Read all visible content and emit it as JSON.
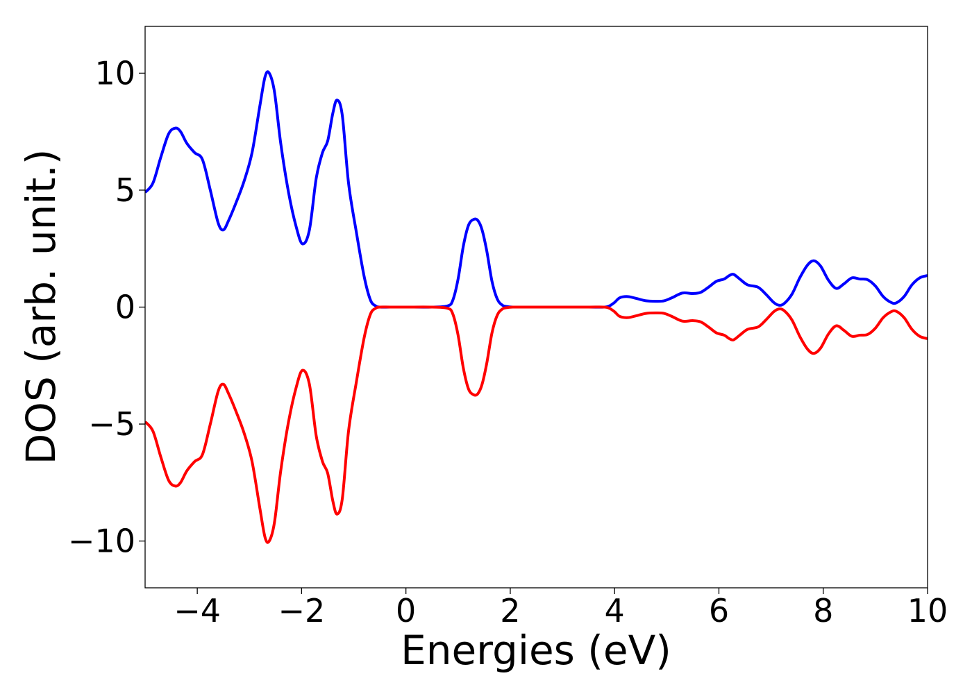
{
  "chart_data": {
    "type": "line",
    "xlabel": "Energies (eV)",
    "ylabel": "DOS (arb. unit.)",
    "xlim": [
      -5,
      10
    ],
    "ylim": [
      -12,
      12
    ],
    "grid": false,
    "x_ticks": [
      -4,
      -2,
      0,
      2,
      4,
      6,
      8,
      10
    ],
    "x_tick_labels": [
      "−4",
      "−2",
      "0",
      "2",
      "4",
      "6",
      "8",
      "10"
    ],
    "y_ticks": [
      -10,
      -5,
      0,
      5,
      10
    ],
    "y_tick_labels": [
      "−10",
      "−5",
      "0",
      "5",
      "10"
    ],
    "series": [
      {
        "color": "#0000ff",
        "x": [
          -5.0,
          -4.85,
          -4.7,
          -4.55,
          -4.42,
          -4.32,
          -4.2,
          -4.05,
          -3.9,
          -3.75,
          -3.6,
          -3.5,
          -3.4,
          -3.25,
          -3.1,
          -2.95,
          -2.8,
          -2.7,
          -2.62,
          -2.52,
          -2.4,
          -2.25,
          -2.1,
          -1.98,
          -1.85,
          -1.72,
          -1.6,
          -1.5,
          -1.4,
          -1.32,
          -1.22,
          -1.1,
          -0.95,
          -0.8,
          -0.68,
          -0.58,
          -0.5,
          -0.3,
          0.0,
          0.5,
          0.8,
          0.9,
          1.0,
          1.1,
          1.2,
          1.3,
          1.38,
          1.46,
          1.55,
          1.65,
          1.75,
          1.85,
          1.95,
          2.05,
          2.2,
          2.6,
          3.0,
          3.5,
          3.8,
          3.9,
          4.0,
          4.1,
          4.25,
          4.4,
          4.6,
          4.8,
          4.95,
          5.1,
          5.3,
          5.5,
          5.65,
          5.8,
          5.95,
          6.1,
          6.2,
          6.28,
          6.4,
          6.55,
          6.75,
          6.9,
          7.05,
          7.15,
          7.25,
          7.4,
          7.55,
          7.7,
          7.82,
          7.95,
          8.1,
          8.25,
          8.4,
          8.55,
          8.7,
          8.85,
          9.0,
          9.15,
          9.3,
          9.4,
          9.55,
          9.7,
          9.85,
          10.0
        ],
        "y": [
          4.9,
          5.3,
          6.4,
          7.4,
          7.65,
          7.5,
          7.0,
          6.6,
          6.3,
          5.0,
          3.6,
          3.3,
          3.7,
          4.5,
          5.4,
          6.6,
          8.6,
          9.85,
          10.0,
          9.2,
          7.0,
          4.9,
          3.4,
          2.7,
          3.3,
          5.5,
          6.6,
          7.1,
          8.3,
          8.85,
          8.2,
          5.3,
          3.2,
          1.3,
          0.3,
          0.05,
          0.0,
          0.0,
          0.0,
          0.0,
          0.05,
          0.3,
          1.2,
          2.6,
          3.5,
          3.75,
          3.7,
          3.3,
          2.4,
          1.1,
          0.35,
          0.08,
          0.02,
          0.0,
          0.0,
          0.0,
          0.0,
          0.0,
          0.0,
          0.05,
          0.2,
          0.4,
          0.45,
          0.38,
          0.27,
          0.25,
          0.27,
          0.4,
          0.6,
          0.58,
          0.63,
          0.85,
          1.1,
          1.2,
          1.35,
          1.4,
          1.2,
          0.95,
          0.85,
          0.55,
          0.2,
          0.08,
          0.15,
          0.55,
          1.25,
          1.8,
          1.98,
          1.75,
          1.15,
          0.8,
          1.0,
          1.25,
          1.2,
          1.17,
          0.9,
          0.45,
          0.2,
          0.18,
          0.45,
          0.95,
          1.25,
          1.35
        ]
      },
      {
        "color": "#ff0000",
        "x": [
          -5.0,
          -4.85,
          -4.7,
          -4.55,
          -4.42,
          -4.32,
          -4.2,
          -4.05,
          -3.9,
          -3.75,
          -3.6,
          -3.5,
          -3.4,
          -3.25,
          -3.1,
          -2.95,
          -2.8,
          -2.7,
          -2.62,
          -2.52,
          -2.4,
          -2.25,
          -2.1,
          -1.98,
          -1.85,
          -1.72,
          -1.6,
          -1.5,
          -1.4,
          -1.32,
          -1.22,
          -1.1,
          -0.95,
          -0.8,
          -0.68,
          -0.58,
          -0.5,
          -0.3,
          0.0,
          0.5,
          0.8,
          0.9,
          1.0,
          1.1,
          1.2,
          1.3,
          1.38,
          1.46,
          1.55,
          1.65,
          1.75,
          1.85,
          1.95,
          2.05,
          2.2,
          2.6,
          3.0,
          3.5,
          3.8,
          3.9,
          4.0,
          4.1,
          4.25,
          4.4,
          4.6,
          4.8,
          4.95,
          5.1,
          5.3,
          5.5,
          5.65,
          5.8,
          5.95,
          6.1,
          6.2,
          6.28,
          6.4,
          6.55,
          6.75,
          6.9,
          7.05,
          7.15,
          7.25,
          7.4,
          7.55,
          7.7,
          7.82,
          7.95,
          8.1,
          8.25,
          8.4,
          8.55,
          8.7,
          8.85,
          9.0,
          9.15,
          9.3,
          9.4,
          9.55,
          9.7,
          9.85,
          10.0
        ],
        "y": [
          -4.9,
          -5.3,
          -6.4,
          -7.4,
          -7.65,
          -7.5,
          -7.0,
          -6.6,
          -6.3,
          -5.0,
          -3.6,
          -3.3,
          -3.7,
          -4.5,
          -5.4,
          -6.6,
          -8.6,
          -9.85,
          -10.0,
          -9.2,
          -7.0,
          -4.9,
          -3.4,
          -2.7,
          -3.3,
          -5.5,
          -6.6,
          -7.1,
          -8.3,
          -8.85,
          -8.2,
          -5.3,
          -3.2,
          -1.3,
          -0.3,
          -0.05,
          0.0,
          0.0,
          0.0,
          0.0,
          -0.05,
          -0.3,
          -1.2,
          -2.6,
          -3.5,
          -3.75,
          -3.7,
          -3.3,
          -2.4,
          -1.1,
          -0.35,
          -0.08,
          -0.02,
          0.0,
          0.0,
          0.0,
          0.0,
          0.0,
          0.0,
          -0.05,
          -0.2,
          -0.4,
          -0.45,
          -0.38,
          -0.27,
          -0.25,
          -0.27,
          -0.4,
          -0.6,
          -0.58,
          -0.63,
          -0.85,
          -1.1,
          -1.2,
          -1.35,
          -1.4,
          -1.2,
          -0.95,
          -0.85,
          -0.55,
          -0.2,
          -0.08,
          -0.15,
          -0.55,
          -1.25,
          -1.8,
          -1.98,
          -1.75,
          -1.15,
          -0.8,
          -1.0,
          -1.25,
          -1.2,
          -1.17,
          -0.9,
          -0.45,
          -0.2,
          -0.18,
          -0.45,
          -0.95,
          -1.25,
          -1.35
        ]
      }
    ]
  }
}
